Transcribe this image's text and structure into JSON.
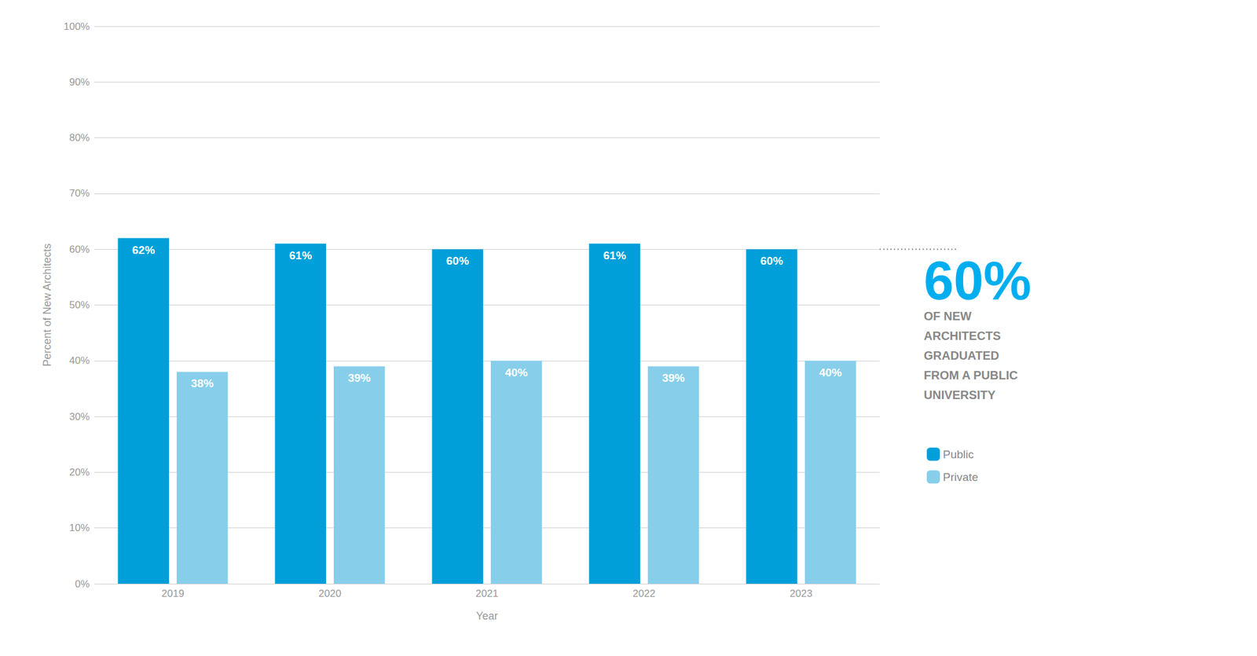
{
  "chart_data": {
    "type": "bar",
    "categories": [
      "2019",
      "2020",
      "2021",
      "2022",
      "2023"
    ],
    "series": [
      {
        "name": "Public",
        "color": "#009FDA",
        "values": [
          62,
          61,
          60,
          61,
          60
        ],
        "value_labels": [
          "62%",
          "61%",
          "60%",
          "61%",
          "60%"
        ]
      },
      {
        "name": "Private",
        "color": "#87CEEB",
        "values": [
          38,
          39,
          40,
          39,
          40
        ],
        "value_labels": [
          "38%",
          "39%",
          "40%",
          "39%",
          "40%"
        ]
      }
    ],
    "xlabel": "Year",
    "ylabel": "Percent of New Architects",
    "ylim": [
      0,
      100
    ],
    "yticks": [
      {
        "value": 0,
        "label": "0%"
      },
      {
        "value": 10,
        "label": "10%"
      },
      {
        "value": 20,
        "label": "20%"
      },
      {
        "value": 30,
        "label": "30%"
      },
      {
        "value": 40,
        "label": "40%"
      },
      {
        "value": 50,
        "label": "50%"
      },
      {
        "value": 60,
        "label": "60%"
      },
      {
        "value": 70,
        "label": "70%"
      },
      {
        "value": 80,
        "label": "80%"
      },
      {
        "value": 90,
        "label": "90%"
      },
      {
        "value": 100,
        "label": "100%"
      }
    ],
    "grid": true,
    "legend": "right",
    "data_labels": true,
    "annotation": {
      "value": 60,
      "label": "60%",
      "color": "#00AEEF",
      "line_style": "dotted",
      "lines": [
        "OF NEW",
        "ARCHITECTS",
        "GRADUATED",
        "FROM A PUBLIC",
        "UNIVERSITY"
      ]
    }
  }
}
